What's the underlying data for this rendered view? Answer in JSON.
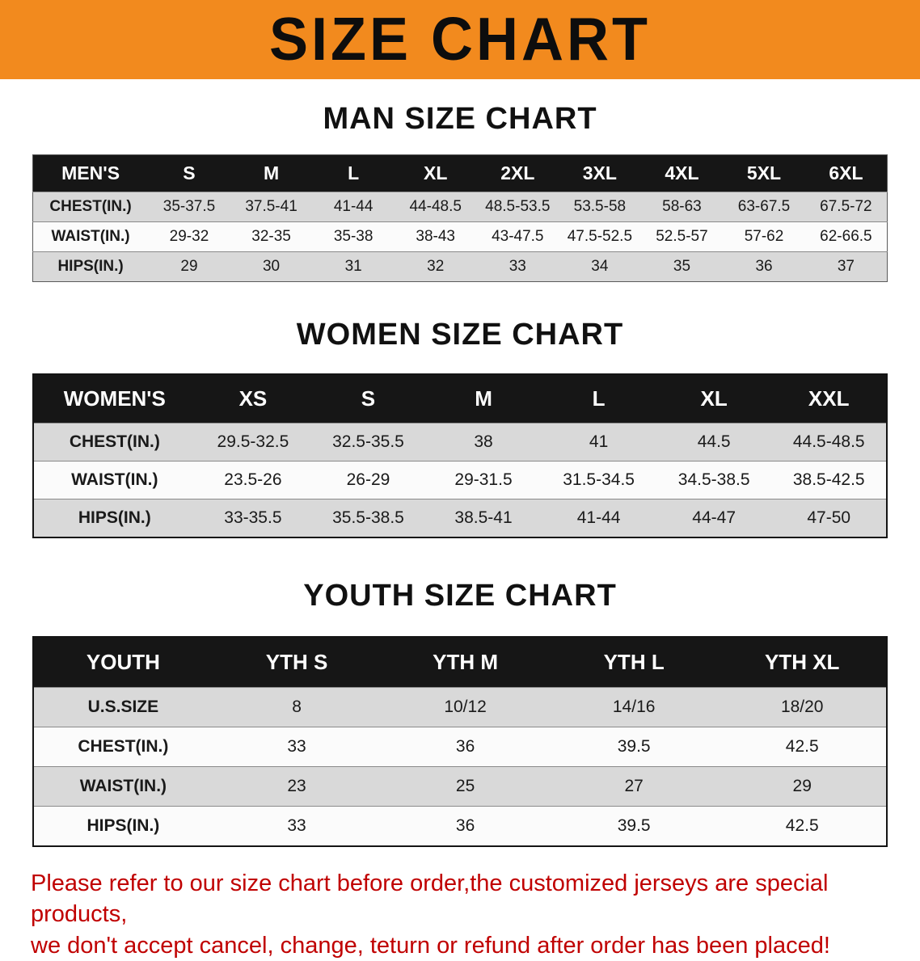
{
  "banner": {
    "title": "SIZE CHART",
    "bg_color": "#F28A1E"
  },
  "sections": [
    {
      "heading": "MAN SIZE CHART",
      "table": {
        "header": [
          "MEN'S",
          "S",
          "M",
          "L",
          "XL",
          "2XL",
          "3XL",
          "4XL",
          "5XL",
          "6XL"
        ],
        "rows": [
          [
            "CHEST(IN.)",
            "35-37.5",
            "37.5-41",
            "41-44",
            "44-48.5",
            "48.5-53.5",
            "53.5-58",
            "58-63",
            "63-67.5",
            "67.5-72"
          ],
          [
            "WAIST(IN.)",
            "29-32",
            "32-35",
            "35-38",
            "38-43",
            "43-47.5",
            "47.5-52.5",
            "52.5-57",
            "57-62",
            "62-66.5"
          ],
          [
            "HIPS(IN.)",
            "29",
            "30",
            "31",
            "32",
            "33",
            "34",
            "35",
            "36",
            "37"
          ]
        ]
      }
    },
    {
      "heading": "WOMEN SIZE CHART",
      "table": {
        "header": [
          "WOMEN'S",
          "XS",
          "S",
          "M",
          "L",
          "XL",
          "XXL"
        ],
        "rows": [
          [
            "CHEST(IN.)",
            "29.5-32.5",
            "32.5-35.5",
            "38",
            "41",
            "44.5",
            "44.5-48.5"
          ],
          [
            "WAIST(IN.)",
            "23.5-26",
            "26-29",
            "29-31.5",
            "31.5-34.5",
            "34.5-38.5",
            "38.5-42.5"
          ],
          [
            "HIPS(IN.)",
            "33-35.5",
            "35.5-38.5",
            "38.5-41",
            "41-44",
            "44-47",
            "47-50"
          ]
        ]
      }
    },
    {
      "heading": "YOUTH SIZE CHART",
      "table": {
        "header": [
          "YOUTH",
          "YTH S",
          "YTH M",
          "YTH L",
          "YTH XL"
        ],
        "rows": [
          [
            "U.S.SIZE",
            "8",
            "10/12",
            "14/16",
            "18/20"
          ],
          [
            "CHEST(IN.)",
            "33",
            "36",
            "39.5",
            "42.5"
          ],
          [
            "WAIST(IN.)",
            "23",
            "25",
            "27",
            "29"
          ],
          [
            "HIPS(IN.)",
            "33",
            "36",
            "39.5",
            "42.5"
          ]
        ]
      }
    }
  ],
  "disclaimer": {
    "line1": "Please refer to our size chart before order,the customized jerseys are special products,",
    "line2": "we don't accept cancel, change, teturn or refund after order has been placed!",
    "color": "#C00000"
  }
}
